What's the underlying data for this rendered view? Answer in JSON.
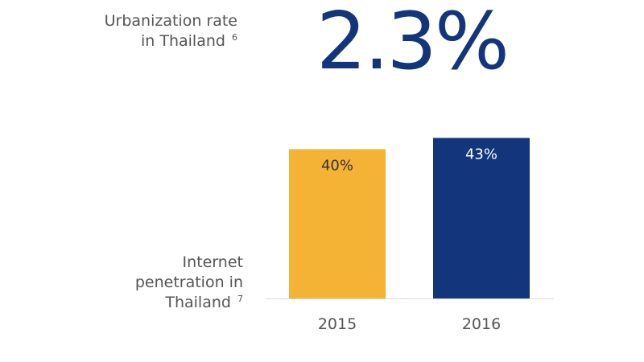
{
  "urbanization": {
    "label_line1": "Urbanization rate",
    "label_line2": "in Thailand",
    "footnote": "6",
    "value": "2.3%",
    "color": "#12357c"
  },
  "internet": {
    "label_line1": "Internet",
    "label_line2": "penetration in",
    "label_line3": "Thailand",
    "footnote": "7"
  },
  "chart_data": {
    "type": "bar",
    "categories": [
      "2015",
      "2016"
    ],
    "values": [
      40,
      43
    ],
    "value_labels": [
      "40%",
      "43%"
    ],
    "colors": [
      "#f5b335",
      "#12357c"
    ],
    "label_colors": [
      "#333333",
      "#ffffff"
    ],
    "axis_color": "#d9d9d9",
    "xlabel": "",
    "ylabel": "",
    "title": ""
  }
}
